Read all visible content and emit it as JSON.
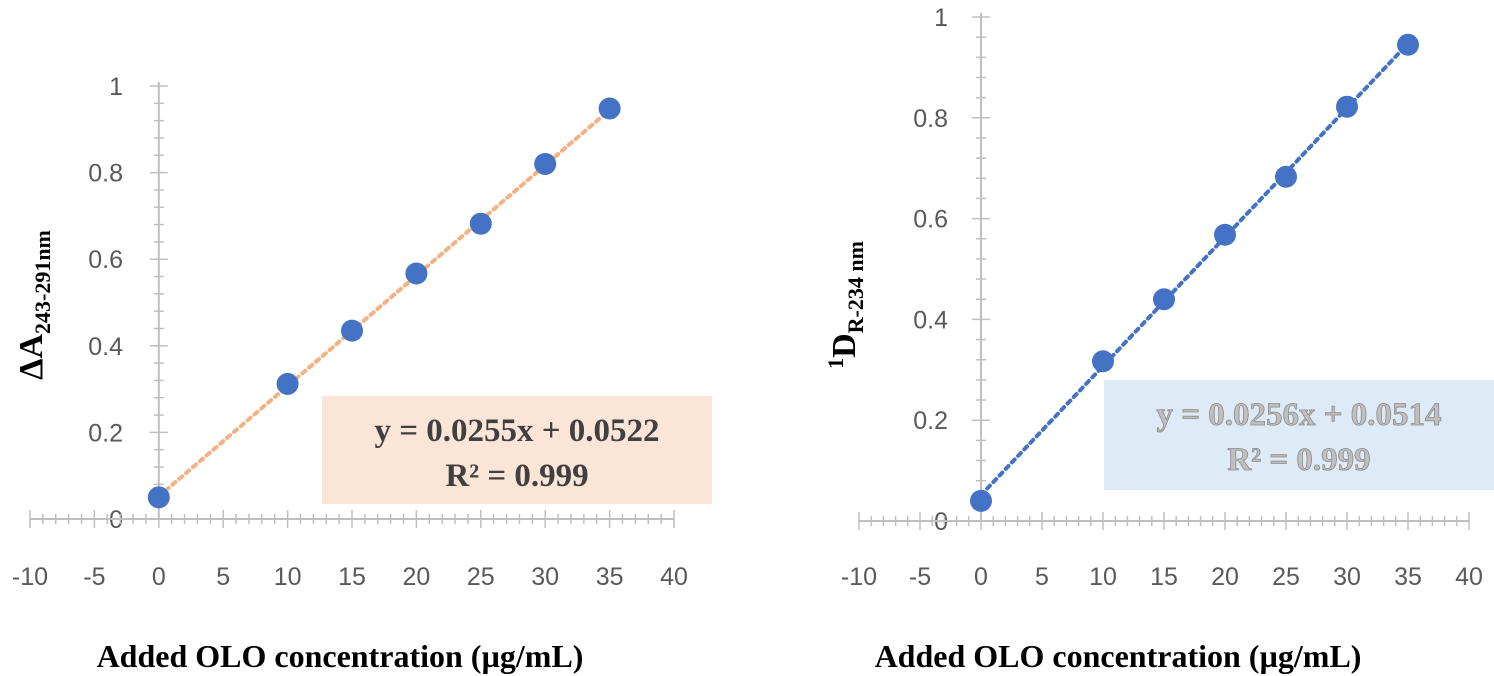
{
  "chart_data": [
    {
      "type": "scatter",
      "ylabel_main": "ΔA",
      "ylabel_sub": "243-291nm",
      "xlabel": "Added OLO concentration (µg/mL)",
      "x": [
        0,
        10,
        15,
        20,
        25,
        30,
        35
      ],
      "y": [
        0.05,
        0.312,
        0.435,
        0.567,
        0.682,
        0.82,
        0.948
      ],
      "xlim": [
        -10,
        40
      ],
      "ylim": [
        0,
        1
      ],
      "xticks": [
        "-10",
        "-5",
        "0",
        "5",
        "10",
        "15",
        "20",
        "25",
        "30",
        "35",
        "40"
      ],
      "yticks": [
        "0",
        "0.2",
        "0.4",
        "0.6",
        "0.8",
        "1"
      ],
      "trendline": {
        "style": "dotted",
        "color": "#f4b183",
        "equation": "y = 0.0255x + 0.0522",
        "r2": "R² = 0.999",
        "box_color": "#fbe5d6",
        "slope": 0.0255,
        "intercept": 0.0522
      },
      "marker_color": "#4472c4"
    },
    {
      "type": "scatter",
      "ylabel_main": "D",
      "ylabel_sup": "1",
      "ylabel_sub": "R-234 nm",
      "xlabel": "Added OLO concentration (µg/mL)",
      "x": [
        0,
        10,
        15,
        20,
        25,
        30,
        35
      ],
      "y": [
        0.04,
        0.317,
        0.44,
        0.568,
        0.683,
        0.822,
        0.945
      ],
      "xlim": [
        -10,
        40
      ],
      "ylim": [
        0,
        1
      ],
      "xticks": [
        "-10",
        "-5",
        "0",
        "5",
        "10",
        "15",
        "20",
        "25",
        "30",
        "35",
        "40"
      ],
      "yticks": [
        "0",
        "0.2",
        "0.4",
        "0.6",
        "0.8",
        "1"
      ],
      "trendline": {
        "style": "dotted",
        "color": "#4472c4",
        "equation": "y = 0.0256x + 0.0514",
        "r2": "R² = 0.999",
        "box_color": "#deebf7",
        "slope": 0.0256,
        "intercept": 0.0514
      },
      "marker_color": "#4472c4"
    }
  ]
}
